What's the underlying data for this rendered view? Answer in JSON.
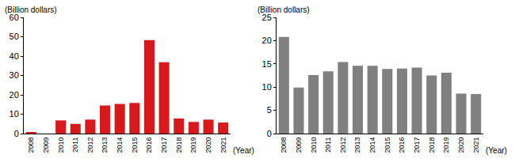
{
  "chart_data": [
    {
      "type": "bar",
      "y_label": "(Billion dollars)",
      "x_label": "(Year)",
      "categories": [
        "2008",
        "2009",
        "2010",
        "2011",
        "2012",
        "2013",
        "2014",
        "2015",
        "2016",
        "2017",
        "2018",
        "2019",
        "2020",
        "2021"
      ],
      "values": [
        0.8,
        0,
        6.8,
        5.0,
        7.2,
        14.5,
        15.3,
        15.8,
        48.3,
        36.8,
        7.8,
        6.0,
        7.2,
        5.7
      ],
      "color": "#d7191c",
      "ylim": [
        0,
        60
      ],
      "yticks": [
        0,
        10,
        20,
        30,
        40,
        50,
        60
      ],
      "grid": false
    },
    {
      "type": "bar",
      "y_label": "(Billion dollars)",
      "x_label": "(Year)",
      "categories": [
        "2008",
        "2009",
        "2010",
        "2011",
        "2012",
        "2013",
        "2014",
        "2015",
        "2016",
        "2017",
        "2018",
        "2019",
        "2020",
        "2021"
      ],
      "values": [
        20.8,
        9.9,
        12.6,
        13.4,
        15.4,
        14.6,
        14.6,
        13.9,
        14.0,
        14.2,
        12.5,
        13.1,
        8.6,
        8.5
      ],
      "color": "#808080",
      "ylim": [
        0,
        25
      ],
      "yticks": [
        0,
        5,
        10,
        15,
        20,
        25
      ],
      "grid": false
    }
  ]
}
